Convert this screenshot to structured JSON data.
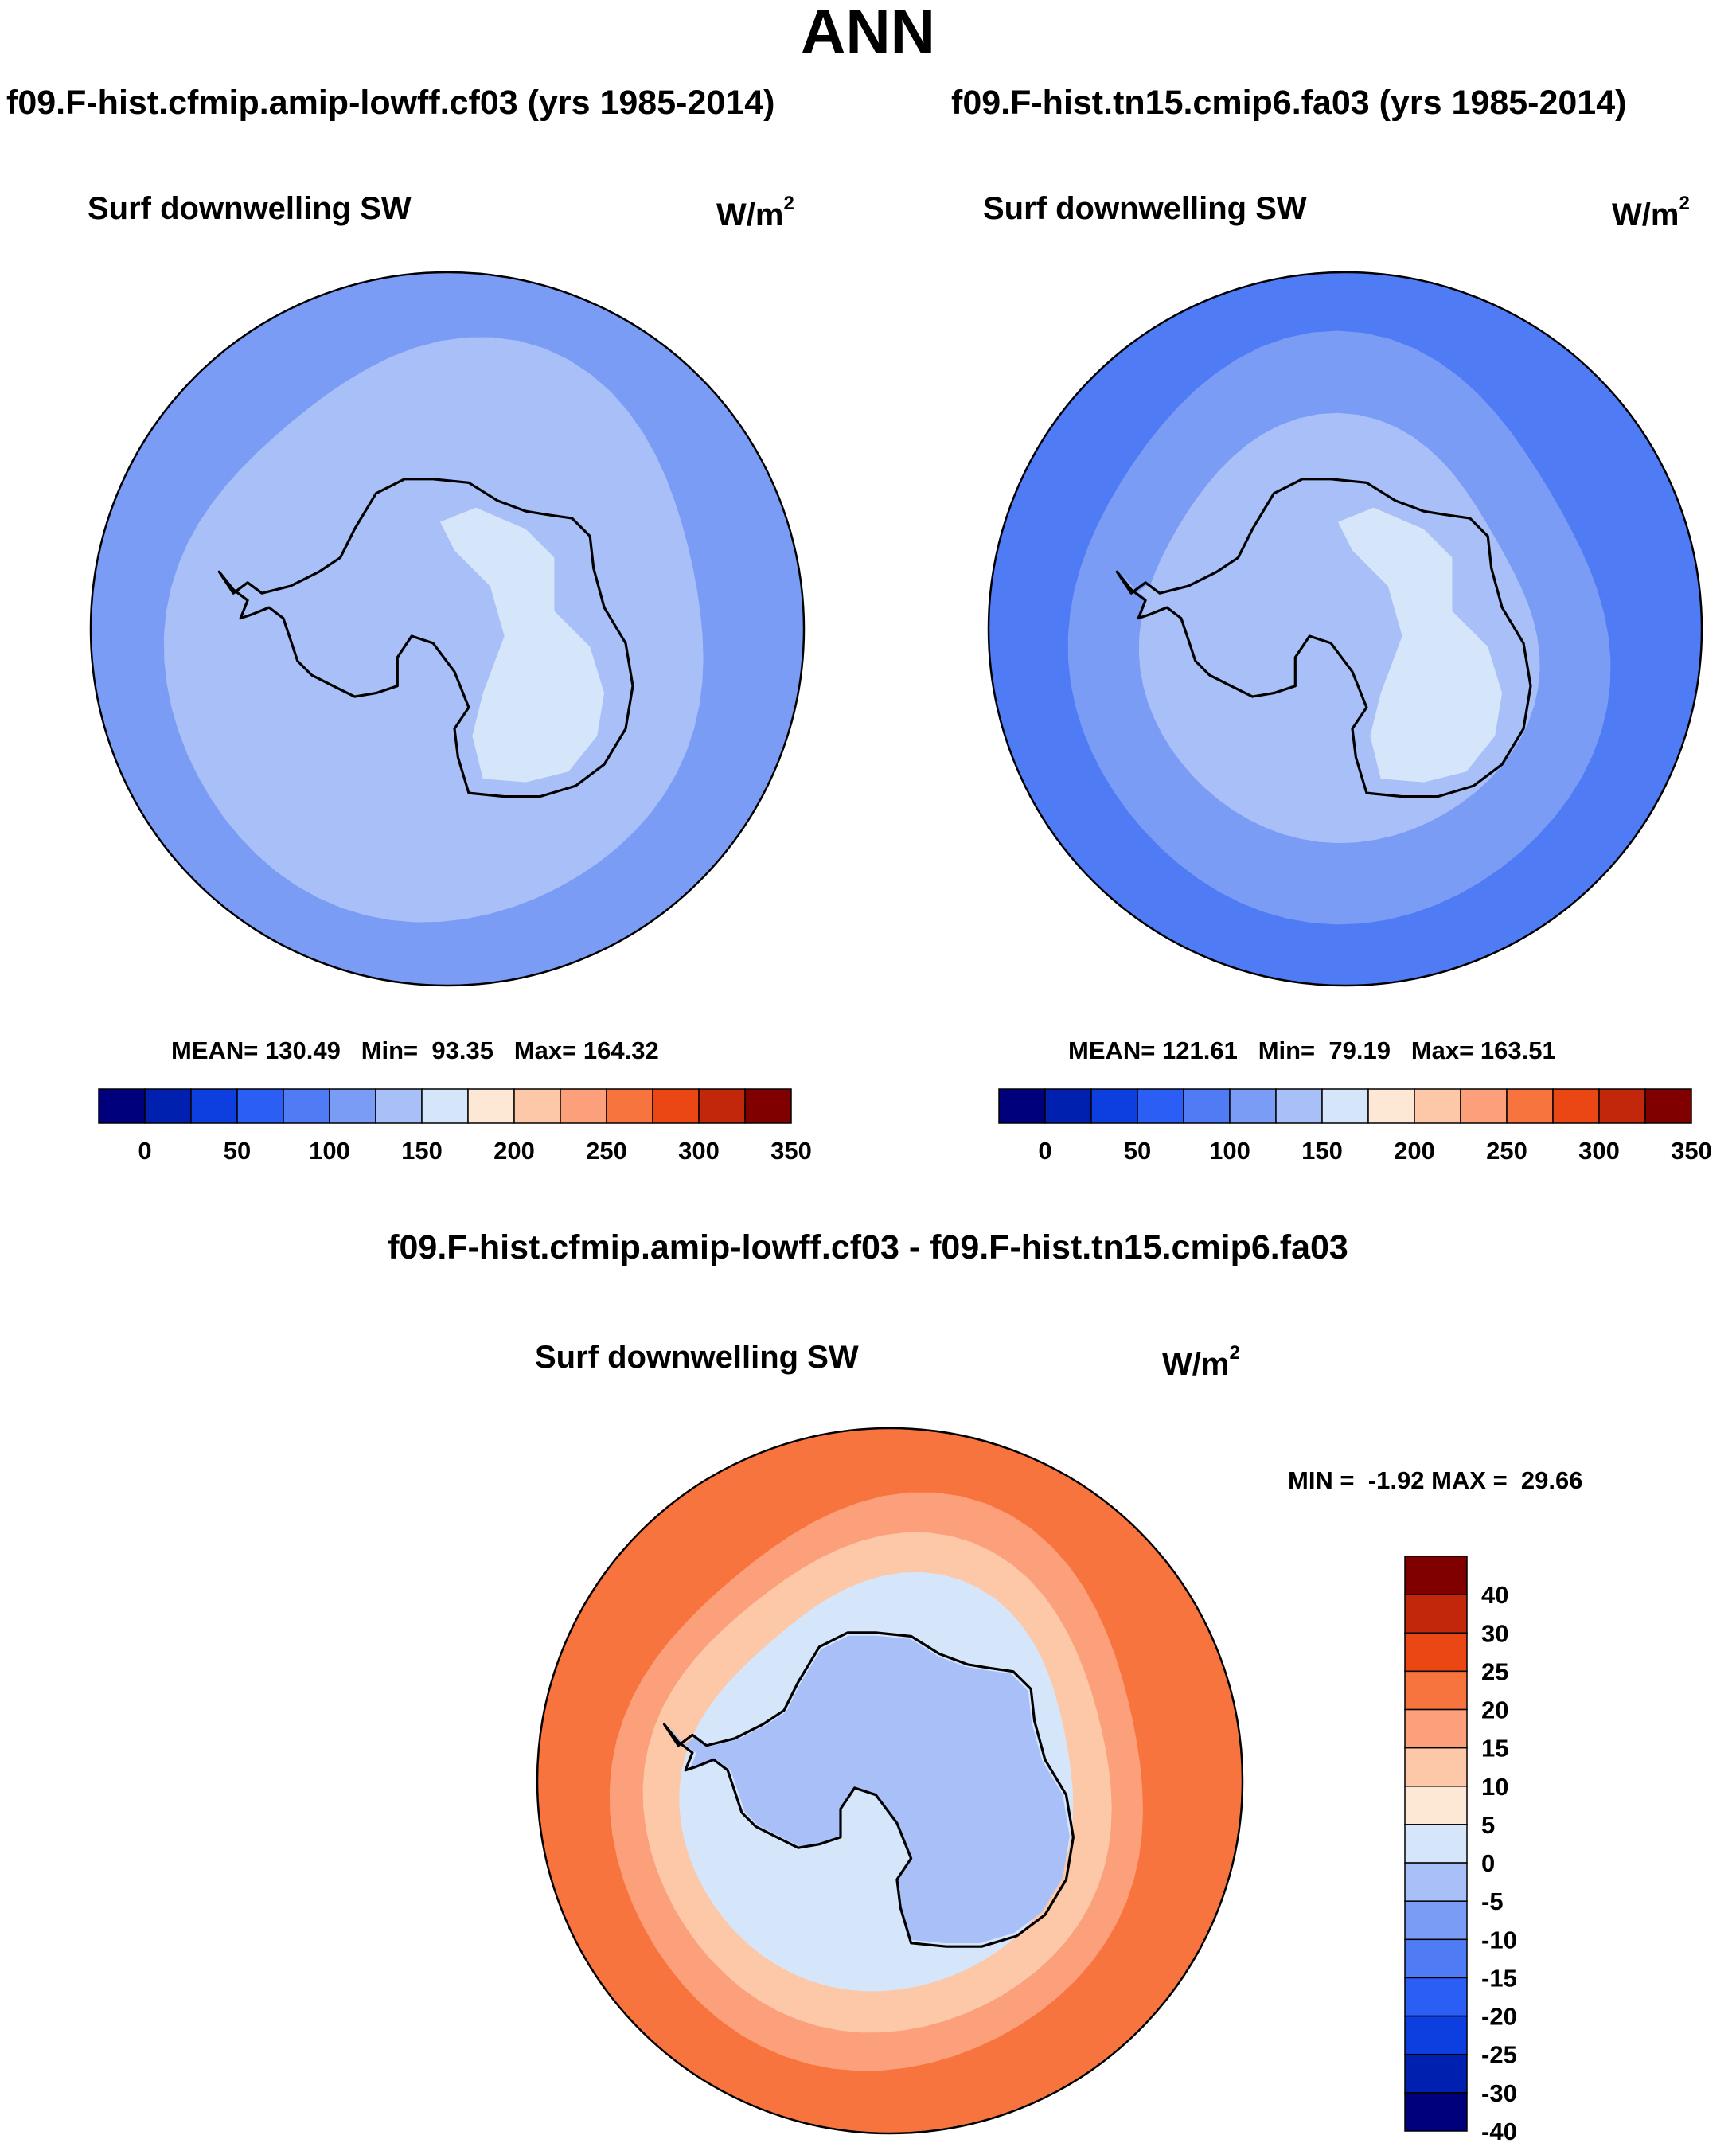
{
  "figure": {
    "season": "ANN",
    "diff_title": "f09.F-hist.cfmip.amip-lowff.cf03 - f09.F-hist.tn15.cmip6.fa03"
  },
  "colors": {
    "abs_scale": [
      "#00007d",
      "#0020b0",
      "#0d3fe0",
      "#2b5ef5",
      "#4f7bf5",
      "#7a9cf5",
      "#a8c0f7",
      "#d6e6fa",
      "#fde8d6",
      "#fcc8a8",
      "#fba07a",
      "#f8743f",
      "#ea4715",
      "#c2270b",
      "#800000"
    ],
    "diff_scale": [
      "#00007d",
      "#0020b0",
      "#0d3fe0",
      "#2b5ef5",
      "#4f7bf5",
      "#7a9cf5",
      "#a8c0f7",
      "#d6e6fa",
      "#fde8d6",
      "#fcc8a8",
      "#fba07a",
      "#f8743f",
      "#ea4715",
      "#c2270b",
      "#800000"
    ],
    "coast": "#000000"
  },
  "chart_data": [
    {
      "type": "heatmap",
      "id": "panel_left",
      "title": "f09.F-hist.cfmip.amip-lowff.cf03 (yrs 1985-2014)",
      "variable": "Surf downwelling SW",
      "units_base": "W/m",
      "units_exp": "2",
      "projection": "south-polar-stereographic",
      "stats": {
        "mean_label": "MEAN=",
        "mean": "130.49",
        "min_label": "Min=",
        "min": "93.35",
        "max_label": "Max=",
        "max": "164.32"
      },
      "colorbar": {
        "orientation": "horizontal",
        "ticks": [
          "0",
          "50",
          "100",
          "150",
          "200",
          "250",
          "300",
          "350"
        ],
        "levels": [
          -25,
          0,
          25,
          50,
          75,
          100,
          125,
          150,
          175,
          200,
          225,
          250,
          275,
          300,
          325,
          350
        ]
      },
      "regions": [
        {
          "zone": "outer_ocean",
          "value": 110
        },
        {
          "zone": "southern_ocean",
          "value": 125
        },
        {
          "zone": "coastal_ring",
          "value": 140
        },
        {
          "zone": "west_antarctica",
          "value": 140
        },
        {
          "zone": "east_antarctica_plateau",
          "value": 160
        }
      ]
    },
    {
      "type": "heatmap",
      "id": "panel_right",
      "title": "f09.F-hist.tn15.cmip6.fa03 (yrs 1985-2014)",
      "variable": "Surf downwelling SW",
      "units_base": "W/m",
      "units_exp": "2",
      "projection": "south-polar-stereographic",
      "stats": {
        "mean_label": "MEAN=",
        "mean": "121.61",
        "min_label": "Min=",
        "min": "79.19",
        "max_label": "Max=",
        "max": "163.51"
      },
      "colorbar": {
        "orientation": "horizontal",
        "ticks": [
          "0",
          "50",
          "100",
          "150",
          "200",
          "250",
          "300",
          "350"
        ],
        "levels": [
          -25,
          0,
          25,
          50,
          75,
          100,
          125,
          150,
          175,
          200,
          225,
          250,
          275,
          300,
          325,
          350
        ]
      },
      "regions": [
        {
          "zone": "outer_ocean",
          "value": 90
        },
        {
          "zone": "southern_ocean",
          "value": 110
        },
        {
          "zone": "coastal_ring",
          "value": 130
        },
        {
          "zone": "west_antarctica",
          "value": 140
        },
        {
          "zone": "east_antarctica_plateau",
          "value": 160
        }
      ]
    },
    {
      "type": "heatmap",
      "id": "panel_diff",
      "title": "f09.F-hist.cfmip.amip-lowff.cf03 - f09.F-hist.tn15.cmip6.fa03",
      "variable": "Surf downwelling SW",
      "units_base": "W/m",
      "units_exp": "2",
      "projection": "south-polar-stereographic",
      "stats": {
        "min_label": "MIN =",
        "min": "-1.92",
        "max_label": "MAX =",
        "max": "29.66"
      },
      "colorbar": {
        "orientation": "vertical",
        "ticks": [
          "40",
          "30",
          "25",
          "20",
          "15",
          "10",
          "5",
          "0",
          "-5",
          "-10",
          "-15",
          "-20",
          "-25",
          "-30",
          "-40"
        ],
        "levels": [
          -40,
          -30,
          -25,
          -20,
          -15,
          -10,
          -5,
          0,
          5,
          10,
          15,
          20,
          25,
          30,
          40
        ]
      },
      "regions": [
        {
          "zone": "outer_ocean",
          "value": 22
        },
        {
          "zone": "southern_ocean",
          "value": 17
        },
        {
          "zone": "sea_ice_zone",
          "value": 12
        },
        {
          "zone": "coastal_ring",
          "value": 3
        },
        {
          "zone": "antarctic_interior",
          "value": -1
        }
      ]
    }
  ]
}
